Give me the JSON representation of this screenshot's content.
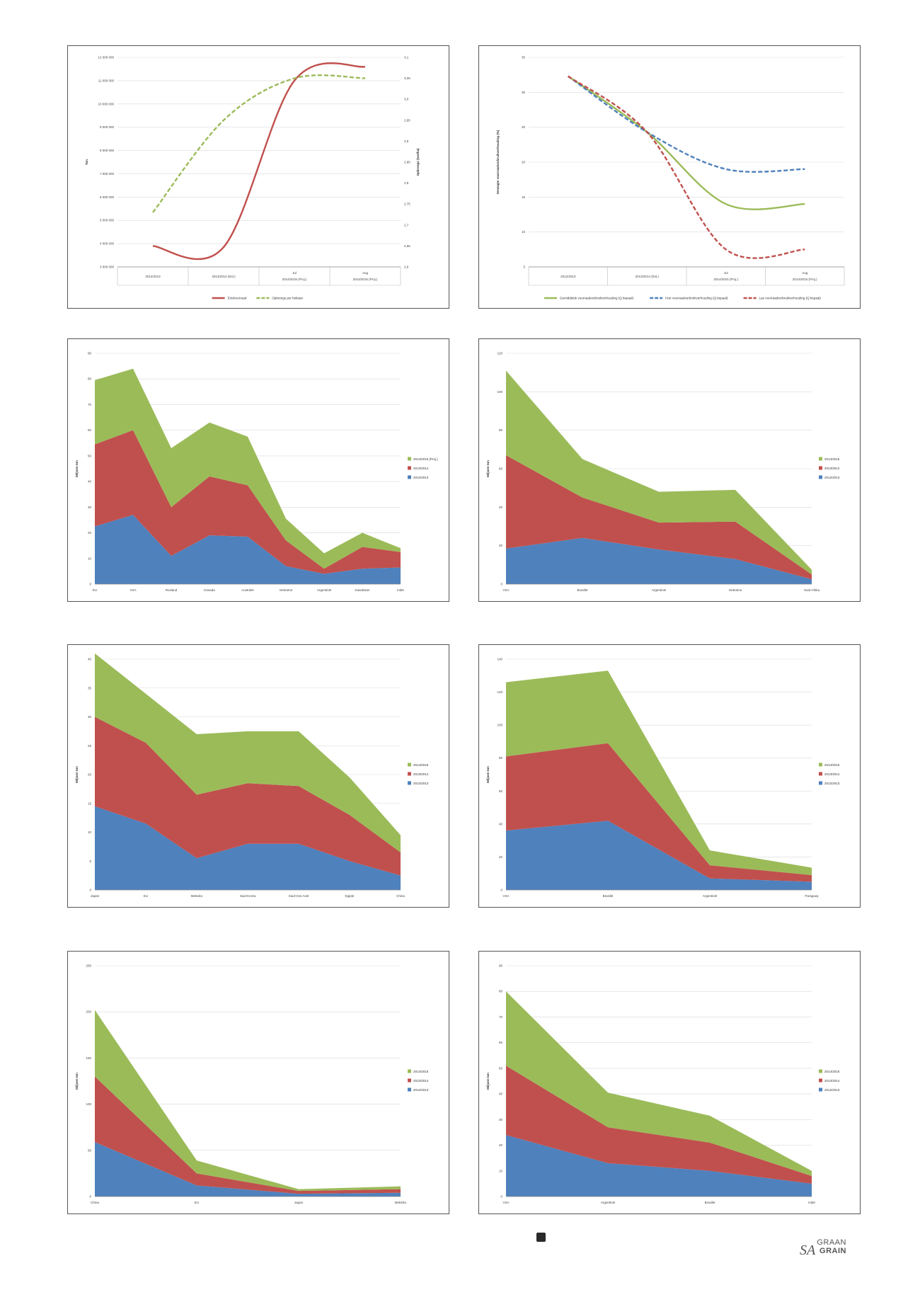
{
  "charts": [
    {
      "type": "line",
      "ylabel": "Ton",
      "y2label": "Opbrengs (ton/ha)",
      "categories": [
        "2012/2013",
        "2013/2014 (Est.)",
        "2014/2015 (Proj.) Jul",
        "2014/2015 (Proj.) Aug"
      ],
      "cat_lines": [
        [
          "2012/2013"
        ],
        [
          "2013/2014 (Est.)"
        ],
        [
          "Jul",
          "2014/2015 (Proj.)"
        ],
        [
          "Aug",
          "2014/2015 (Proj.)"
        ]
      ],
      "ylim": [
        3000000,
        12000000
      ],
      "y_ticks": [
        3000000,
        4000000,
        5000000,
        6000000,
        7000000,
        8000000,
        9000000,
        10000000,
        11000000,
        12000000
      ],
      "y_tick_labels": [
        "3 000 000",
        "4 000 000",
        "5 000 000",
        "6 000 000",
        "7 000 000",
        "8 000 000",
        "9 000 000",
        "10 000 000",
        "11 000 000",
        "12 000 000"
      ],
      "y2lim": [
        2.6,
        3.1
      ],
      "y2_ticks": [
        2.6,
        2.65,
        2.7,
        2.75,
        2.8,
        2.85,
        2.9,
        2.95,
        3.0,
        3.05,
        3.1
      ],
      "y2_tick_labels": [
        "2,6",
        "2,65",
        "2,7",
        "2,75",
        "2,8",
        "2,85",
        "2,9",
        "2,95",
        "3,0",
        "3,05",
        "3,1"
      ],
      "legend_position": "bottom",
      "series": [
        {
          "name": "Eindvoorraad",
          "axis": "left",
          "values": [
            3900000,
            3850000,
            11000000,
            11600000
          ],
          "color": "#c0504d",
          "dash": false
        },
        {
          "name": "Opbrengs per hektaar",
          "axis": "right",
          "values": [
            2.73,
            2.95,
            3.05,
            3.05
          ],
          "color": "#9bbb59",
          "dash": true
        }
      ]
    },
    {
      "type": "line",
      "ylabel": "Verwagte voorraadverbruikverhouding (%)",
      "categories": [
        "2012/2013",
        "2013/2014 (Est.)",
        "2014/2015 (Proj.) Jul",
        "2014/2015 (Proj.) Aug"
      ],
      "cat_lines": [
        [
          "2012/2013"
        ],
        [
          "2013/2014 (Est.)"
        ],
        [
          "Jul",
          "2014/2015 (Proj.)"
        ],
        [
          "Aug",
          "2014/2015 (Proj.)"
        ]
      ],
      "ylim": [
        5,
        35
      ],
      "y_ticks": [
        5,
        10,
        15,
        20,
        25,
        30,
        35
      ],
      "y_tick_labels": [
        "5",
        "10",
        "15",
        "20",
        "25",
        "30",
        "35"
      ],
      "legend_position": "bottom",
      "series": [
        {
          "name": "Gemiddelde voorraadverbruikverhouding (Q bepaal)",
          "values": [
            32.3,
            24.3,
            14,
            14
          ],
          "color": "#9bbb59",
          "dash": false
        },
        {
          "name": "Hoë voorraadverbruikverhouding (Q bepaal)",
          "values": [
            32.3,
            24.3,
            19,
            19
          ],
          "color": "#4f81bd",
          "dash": true
        },
        {
          "name": "Lae voorraadverbruikverhouding (Q bepaal)",
          "values": [
            32.3,
            24.3,
            7.5,
            7.5
          ],
          "color": "#c0504d",
          "dash": true
        }
      ]
    },
    {
      "type": "area",
      "stacked": true,
      "ylabel": "Miljoen ton",
      "categories": [
        "EU",
        "VSA",
        "Rusland",
        "Kanada",
        "Australië",
        "Oekraïne",
        "Argentinië",
        "Kasakstan",
        "Indië"
      ],
      "ylim": [
        0,
        90
      ],
      "y_ticks": [
        0,
        10,
        20,
        30,
        40,
        50,
        60,
        70,
        80,
        90
      ],
      "y_tick_labels": [
        "0",
        "10",
        "20",
        "30",
        "40",
        "50",
        "60",
        "70",
        "80",
        "90"
      ],
      "legend_position": "right",
      "series": [
        {
          "name": "2012/2013",
          "values": [
            22.5,
            27,
            11,
            19,
            18.5,
            7,
            4,
            6,
            6.5
          ],
          "color": "#4f81bd"
        },
        {
          "name": "2013/2014",
          "values": [
            32,
            33,
            19,
            23,
            20,
            10,
            2,
            8.5,
            6
          ],
          "color": "#c0504d"
        },
        {
          "name": "2014/2015 (Proj.)",
          "values": [
            25,
            24,
            23,
            21,
            19,
            8.5,
            6,
            5.5,
            1.5
          ],
          "color": "#9bbb59"
        }
      ]
    },
    {
      "type": "area",
      "stacked": true,
      "ylabel": "Miljoen ton",
      "categories": [
        "VSA",
        "Brasilië",
        "Argentinië",
        "Oekraïne",
        "Suid-Afrika"
      ],
      "ylim": [
        0,
        120
      ],
      "y_ticks": [
        0,
        20,
        40,
        60,
        80,
        100,
        120
      ],
      "y_tick_labels": [
        "0",
        "20",
        "40",
        "60",
        "80",
        "100",
        "120"
      ],
      "legend_position": "right",
      "series": [
        {
          "name": "2012/2013",
          "values": [
            18.5,
            24,
            18,
            13,
            2.5
          ],
          "color": "#4f81bd"
        },
        {
          "name": "2013/2014",
          "values": [
            48.5,
            21,
            14,
            19.5,
            2.5
          ],
          "color": "#c0504d"
        },
        {
          "name": "2014/2015",
          "values": [
            44,
            20,
            16,
            16.5,
            2.5
          ],
          "color": "#9bbb59"
        }
      ]
    },
    {
      "type": "area",
      "stacked": true,
      "ylabel": "Miljoen ton",
      "categories": [
        "Japan",
        "EU",
        "Meksiko",
        "Suid-Korea",
        "Suid-Oos Asië",
        "Egipte",
        "China"
      ],
      "ylim": [
        0,
        40
      ],
      "y_ticks": [
        0,
        5,
        10,
        15,
        20,
        25,
        30,
        35,
        40
      ],
      "y_tick_labels": [
        "0",
        "5",
        "10",
        "15",
        "20",
        "25",
        "30",
        "35",
        "40"
      ],
      "legend_position": "right",
      "series": [
        {
          "name": "2012/2013",
          "values": [
            14.5,
            11.5,
            5.5,
            8,
            8,
            5,
            2.5
          ],
          "color": "#4f81bd"
        },
        {
          "name": "2013/2014",
          "values": [
            15.5,
            14,
            11,
            10.5,
            10,
            8,
            4
          ],
          "color": "#c0504d"
        },
        {
          "name": "2014/2015",
          "values": [
            11,
            8.5,
            10.5,
            9,
            9.5,
            6.5,
            3
          ],
          "color": "#9bbb59"
        }
      ]
    },
    {
      "type": "area",
      "stacked": true,
      "ylabel": "Miljoen ton",
      "categories": [
        "VSA",
        "Brasilië",
        "Argentinië",
        "Paraguay"
      ],
      "ylim": [
        0,
        140
      ],
      "y_ticks": [
        0,
        20,
        40,
        60,
        80,
        100,
        120,
        140
      ],
      "y_tick_labels": [
        "0",
        "20",
        "40",
        "60",
        "80",
        "100",
        "120",
        "140"
      ],
      "legend_position": "right",
      "series": [
        {
          "name": "2012/2013",
          "values": [
            36,
            42,
            7,
            5
          ],
          "color": "#4f81bd"
        },
        {
          "name": "2013/2014",
          "values": [
            45,
            47,
            8,
            4
          ],
          "color": "#c0504d"
        },
        {
          "name": "2014/2015",
          "values": [
            45,
            44,
            9,
            4.5
          ],
          "color": "#9bbb59"
        }
      ]
    },
    {
      "type": "area",
      "stacked": true,
      "ylabel": "Miljoen ton",
      "categories": [
        "China",
        "EU",
        "Japan",
        "Meksiko"
      ],
      "ylim": [
        0,
        250
      ],
      "y_ticks": [
        0,
        50,
        100,
        150,
        200,
        250
      ],
      "y_tick_labels": [
        "0",
        "50",
        "100",
        "150",
        "200",
        "250"
      ],
      "legend_position": "right",
      "series": [
        {
          "name": "2012/2013",
          "values": [
            59,
            12,
            3,
            4
          ],
          "color": "#4f81bd"
        },
        {
          "name": "2013/2014",
          "values": [
            71,
            13,
            3,
            4
          ],
          "color": "#c0504d"
        },
        {
          "name": "2014/2015",
          "values": [
            72,
            14,
            2,
            3
          ],
          "color": "#9bbb59"
        }
      ]
    },
    {
      "type": "area",
      "stacked": true,
      "ylabel": "Miljoen ton",
      "categories": [
        "VSA",
        "Argentinië",
        "Brasilië",
        "Indië"
      ],
      "ylim": [
        0,
        90
      ],
      "y_ticks": [
        0,
        10,
        20,
        30,
        40,
        50,
        60,
        70,
        80,
        90
      ],
      "y_tick_labels": [
        "0",
        "10",
        "20",
        "30",
        "40",
        "50",
        "60",
        "70",
        "80",
        "90"
      ],
      "legend_position": "right",
      "series": [
        {
          "name": "2012/2013",
          "values": [
            24,
            13,
            10,
            5
          ],
          "color": "#4f81bd"
        },
        {
          "name": "2013/2014",
          "values": [
            27,
            14,
            11,
            3
          ],
          "color": "#c0504d"
        },
        {
          "name": "2014/2015",
          "values": [
            29,
            13.5,
            10.5,
            2
          ],
          "color": "#9bbb59"
        }
      ]
    }
  ],
  "footer": {
    "logo_top": "GRAAN",
    "logo_bottom": "GRAIN",
    "logo_sa": "SA"
  }
}
